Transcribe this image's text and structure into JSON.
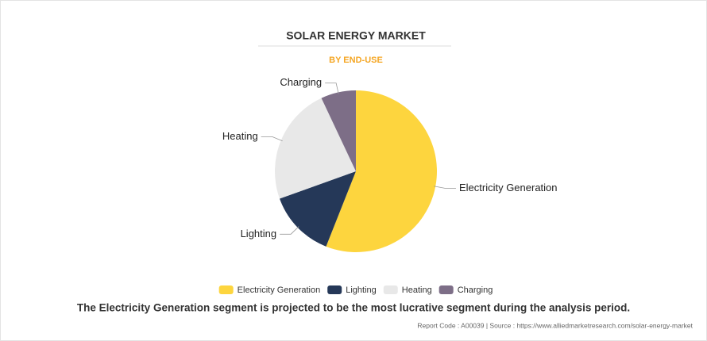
{
  "chart_data": {
    "type": "pie",
    "title": "SOLAR ENERGY MARKET",
    "subtitle": "BY END-USE",
    "categories": [
      "Electricity Generation",
      "Lighting",
      "Heating",
      "Charging"
    ],
    "values": [
      56,
      13.5,
      23.5,
      7
    ],
    "colors": [
      "#fdd53e",
      "#253858",
      "#e8e8e8",
      "#7d6e87"
    ]
  },
  "caption": "The Electricity Generation segment is projected to be the most lucrative segment during the analysis period.",
  "source": "Report Code : A00039  |  Source : https://www.alliedmarketresearch.com/solar-energy-market"
}
